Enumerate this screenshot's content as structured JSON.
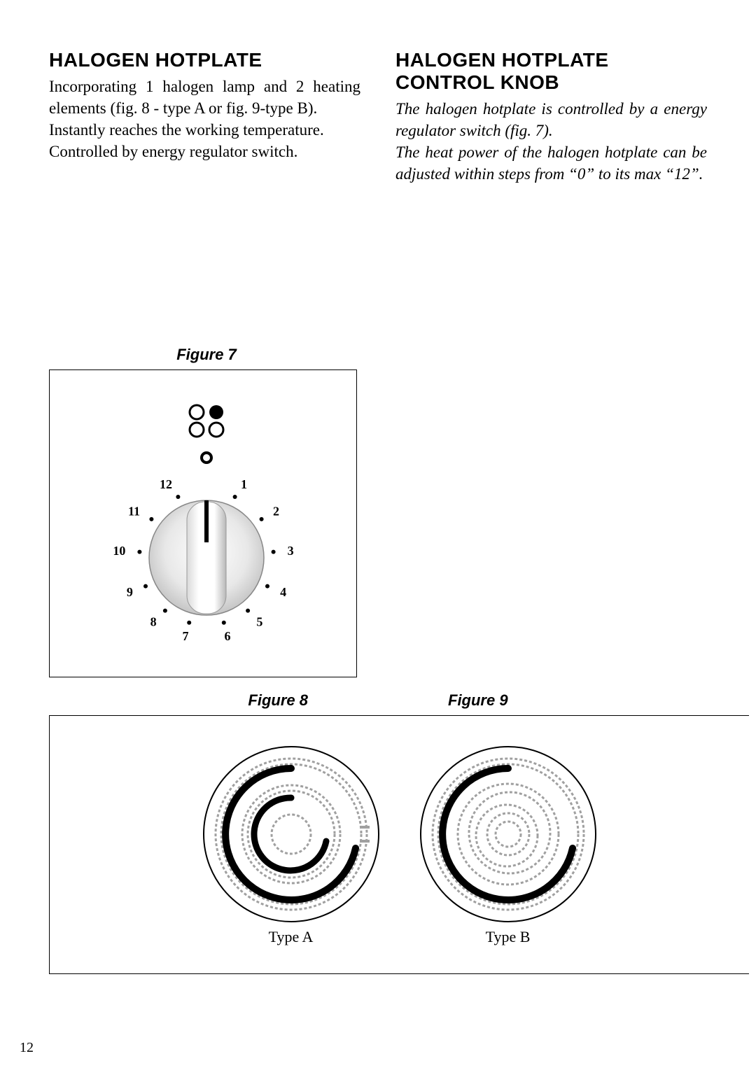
{
  "left": {
    "heading": "HALOGEN HOTPLATE",
    "p1": "Incorporating 1 halogen lamp and 2 heat­ing elements (fig. 8 - type A or fig. 9-type B).",
    "p2": "Instantly reaches the working temperature.",
    "p3": "Controlled by energy regulator switch."
  },
  "right": {
    "heading": "HALOGEN HOTPLATE CONTROL KNOB",
    "p1": "The halogen hotplate is controlled by a energy regulator switch (fig. 7).",
    "p2": "The heat power of the halogen hot­plate can be adjusted within steps from “0” to its max “12”."
  },
  "fig7": {
    "label": "Figure 7",
    "dial_numbers": [
      "1",
      "2",
      "3",
      "4",
      "5",
      "6",
      "7",
      "8",
      "9",
      "10",
      "11",
      "12"
    ],
    "knob": {
      "radius": 80,
      "body_fill_light": "#f6f6f6",
      "body_fill_dark": "#bfbfbf",
      "indicator_color": "#000000"
    }
  },
  "fig8": {
    "label": "Figure 8",
    "type_label": "Type A"
  },
  "fig9": {
    "label": "Figure 9",
    "type_label": "Type B"
  },
  "page_number": "12",
  "colors": {
    "text": "#000000",
    "border": "#000000",
    "coil": "#a0a0a0",
    "halogen_arc": "#000000"
  }
}
